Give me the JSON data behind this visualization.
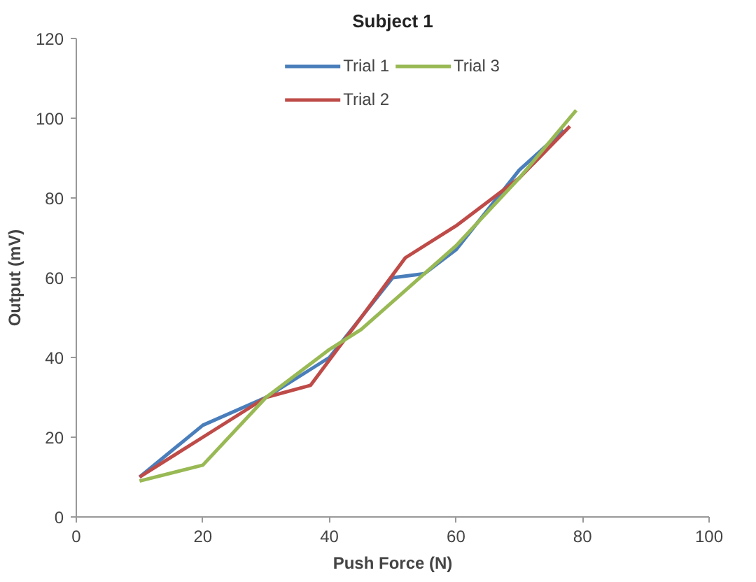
{
  "chart_data": {
    "type": "line",
    "title": "Subject 1",
    "xlabel": "Push Force (N)",
    "ylabel": "Output (mV)",
    "xlim": [
      0,
      100
    ],
    "xticks": [
      0,
      20,
      40,
      60,
      80,
      100
    ],
    "ylim": [
      0,
      120
    ],
    "yticks": [
      0,
      20,
      40,
      60,
      80,
      100,
      120
    ],
    "grid": false,
    "legend": "top",
    "marker": "none",
    "line_style": "solid",
    "series": [
      {
        "name": "Trial 1",
        "color": "#4a7ebb",
        "x": [
          10,
          20,
          30,
          40,
          45,
          50,
          55,
          60,
          70,
          77
        ],
        "values": [
          10,
          23,
          30,
          40,
          50,
          60,
          61,
          67,
          87,
          97
        ]
      },
      {
        "name": "Trial 2",
        "color": "#be4b48",
        "x": [
          10,
          20,
          30,
          37,
          45,
          52,
          60,
          70,
          78
        ],
        "values": [
          10,
          20,
          30,
          33,
          50,
          65,
          73,
          85,
          98
        ]
      },
      {
        "name": "Trial 3",
        "color": "#98b954",
        "x": [
          10,
          20,
          30,
          40,
          45,
          60,
          70,
          79
        ],
        "values": [
          9,
          13,
          30,
          42,
          47,
          68,
          85,
          102
        ]
      }
    ]
  }
}
